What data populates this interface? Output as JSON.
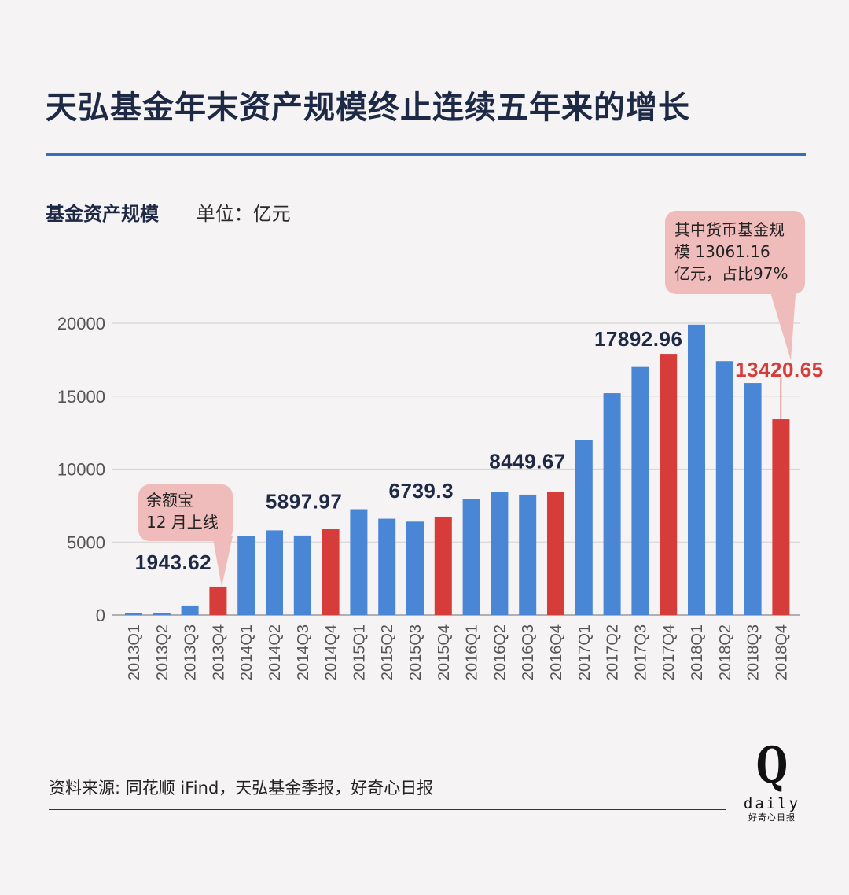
{
  "title": "天弘基金年末资产规模终止连续五年来的增长",
  "subtitle": {
    "label": "基金资产规模",
    "unit": "单位：亿元"
  },
  "source": "资料来源: 同花顺 iFind，天弘基金季报，好奇心日报",
  "logo": {
    "mark": "Q",
    "word": "daily",
    "cn": "好奇心日报"
  },
  "callouts": {
    "yuebao": {
      "line1": "余额宝",
      "line2": "12 月上线"
    },
    "money_fund": {
      "line1": "其中货币基金规",
      "line2": "模 13061.16",
      "line3": "亿元，占比97%"
    }
  },
  "colors": {
    "blue": "#4a86d6",
    "red": "#d63c3a",
    "grid": "#d8d6d6",
    "callout": "#efbcbb",
    "accent_rule": "#2f72b8"
  },
  "chart_data": {
    "type": "bar",
    "categories": [
      "2013Q1",
      "2013Q2",
      "2013Q3",
      "2013Q4",
      "2014Q1",
      "2014Q2",
      "2014Q3",
      "2014Q4",
      "2015Q1",
      "2015Q2",
      "2015Q3",
      "2015Q4",
      "2016Q1",
      "2016Q2",
      "2016Q3",
      "2016Q4",
      "2017Q1",
      "2017Q2",
      "2017Q3",
      "2017Q4",
      "2018Q1",
      "2018Q2",
      "2018Q3",
      "2018Q4"
    ],
    "values": [
      110,
      130,
      650,
      1943.62,
      5400,
      5800,
      5450,
      5897.97,
      7250,
      6600,
      6400,
      6739.3,
      7950,
      8450,
      8250,
      8449.67,
      12000,
      15200,
      17000,
      17892.96,
      19900,
      17400,
      15900,
      13420.65
    ],
    "highlight": [
      "2013Q4",
      "2014Q4",
      "2015Q4",
      "2016Q4",
      "2017Q4",
      "2018Q4"
    ],
    "labels": {
      "2013Q4": "1943.62",
      "2014Q4": "5897.97",
      "2015Q4": "6739.3",
      "2016Q4": "8449.67",
      "2017Q4": "17892.96",
      "2018Q4": "13420.65"
    },
    "yticks": [
      0,
      5000,
      10000,
      15000,
      20000
    ],
    "ylim": [
      0,
      20000
    ],
    "grid": true
  }
}
